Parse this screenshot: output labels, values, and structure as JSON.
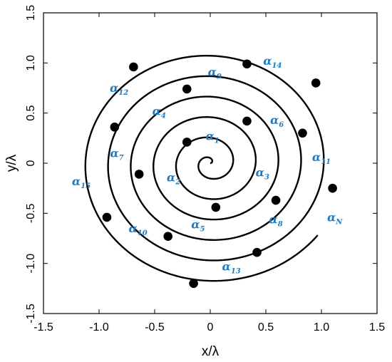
{
  "chart_data": {
    "type": "line",
    "title": "",
    "xlabel": "x/λ",
    "ylabel": "y/λ",
    "xlim": [
      -1.5,
      1.5
    ],
    "ylim": [
      -1.5,
      1.5
    ],
    "x_ticks": [
      "-1.5",
      "-1.0",
      "-0.5",
      "0",
      "0.5",
      "1.0",
      "1.5"
    ],
    "y_ticks": [
      "-1.5",
      "-1.0",
      "-0.5",
      "0",
      "0.5",
      "1.0",
      "1.5"
    ],
    "grid": false,
    "spiral": {
      "description": "Archimedean spiral r = b·θ starting at the origin",
      "b": 0.03249,
      "theta_end": 37.06,
      "color": "#000000"
    },
    "markers": [
      {
        "x": -0.21,
        "y": 0.21
      },
      {
        "x": 0.05,
        "y": -0.44
      },
      {
        "x": 0.33,
        "y": 0.42
      },
      {
        "x": -0.64,
        "y": -0.11
      },
      {
        "x": 0.59,
        "y": -0.37
      },
      {
        "x": -0.21,
        "y": 0.74
      },
      {
        "x": -0.38,
        "y": -0.73
      },
      {
        "x": 0.83,
        "y": 0.3
      },
      {
        "x": -0.86,
        "y": 0.36
      },
      {
        "x": 0.42,
        "y": -0.89
      },
      {
        "x": 0.33,
        "y": 0.99
      },
      {
        "x": -0.93,
        "y": -0.54
      },
      {
        "x": 1.1,
        "y": -0.25
      },
      {
        "x": -0.69,
        "y": 0.96
      },
      {
        "x": 0.95,
        "y": 0.8
      },
      {
        "x": -0.15,
        "y": -1.2
      }
    ],
    "labels": [
      {
        "base": "α",
        "sub": "1",
        "x": 0.02,
        "y": 0.23
      },
      {
        "base": "α",
        "sub": "2",
        "x": -0.33,
        "y": -0.18
      },
      {
        "base": "α",
        "sub": "3",
        "x": 0.47,
        "y": -0.13
      },
      {
        "base": "α",
        "sub": "4",
        "x": -0.46,
        "y": 0.48
      },
      {
        "base": "α",
        "sub": "5",
        "x": -0.11,
        "y": -0.65
      },
      {
        "base": "α",
        "sub": "6",
        "x": 0.6,
        "y": 0.39
      },
      {
        "base": "α",
        "sub": "7",
        "x": -0.84,
        "y": 0.06
      },
      {
        "base": "α",
        "sub": "8",
        "x": 0.59,
        "y": -0.6
      },
      {
        "base": "α",
        "sub": "9",
        "x": 0.04,
        "y": 0.87
      },
      {
        "base": "α",
        "sub": "10",
        "x": -0.65,
        "y": -0.69
      },
      {
        "base": "α",
        "sub": "11",
        "x": 1.0,
        "y": 0.02
      },
      {
        "base": "α",
        "sub": "12",
        "x": -0.82,
        "y": 0.71
      },
      {
        "base": "α",
        "sub": "13",
        "x": 0.19,
        "y": -1.07
      },
      {
        "base": "α",
        "sub": "14",
        "x": 0.56,
        "y": 0.98
      },
      {
        "base": "α",
        "sub": "15",
        "x": -1.16,
        "y": -0.22
      },
      {
        "base": "α",
        "sub": "N",
        "x": 1.12,
        "y": -0.58
      }
    ],
    "label_color": "#1f7bbf"
  }
}
